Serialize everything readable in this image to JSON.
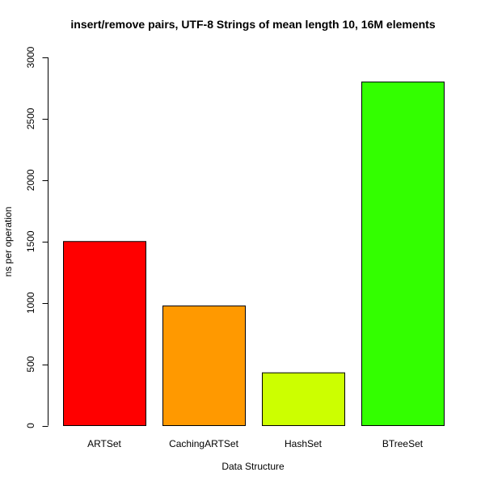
{
  "chart_data": {
    "type": "bar",
    "title": "insert/remove pairs, UTF-8 Strings of mean length 10, 16M elements",
    "xlabel": "Data Structure",
    "ylabel": "ns per operation",
    "categories": [
      "ARTSet",
      "CachingARTSet",
      "HashSet",
      "BTreeSet"
    ],
    "values": [
      1500,
      975,
      430,
      2800
    ],
    "colors": [
      "#ff0000",
      "#ff9900",
      "#ccff00",
      "#33ff00"
    ],
    "ylim": [
      0,
      3000
    ],
    "yticks": [
      0,
      500,
      1000,
      1500,
      2000,
      2500,
      3000
    ],
    "ytick_labels": [
      "0",
      "500",
      "1000",
      "1500",
      "2000",
      "2500",
      "3000"
    ],
    "grid": false,
    "legend": "none"
  }
}
